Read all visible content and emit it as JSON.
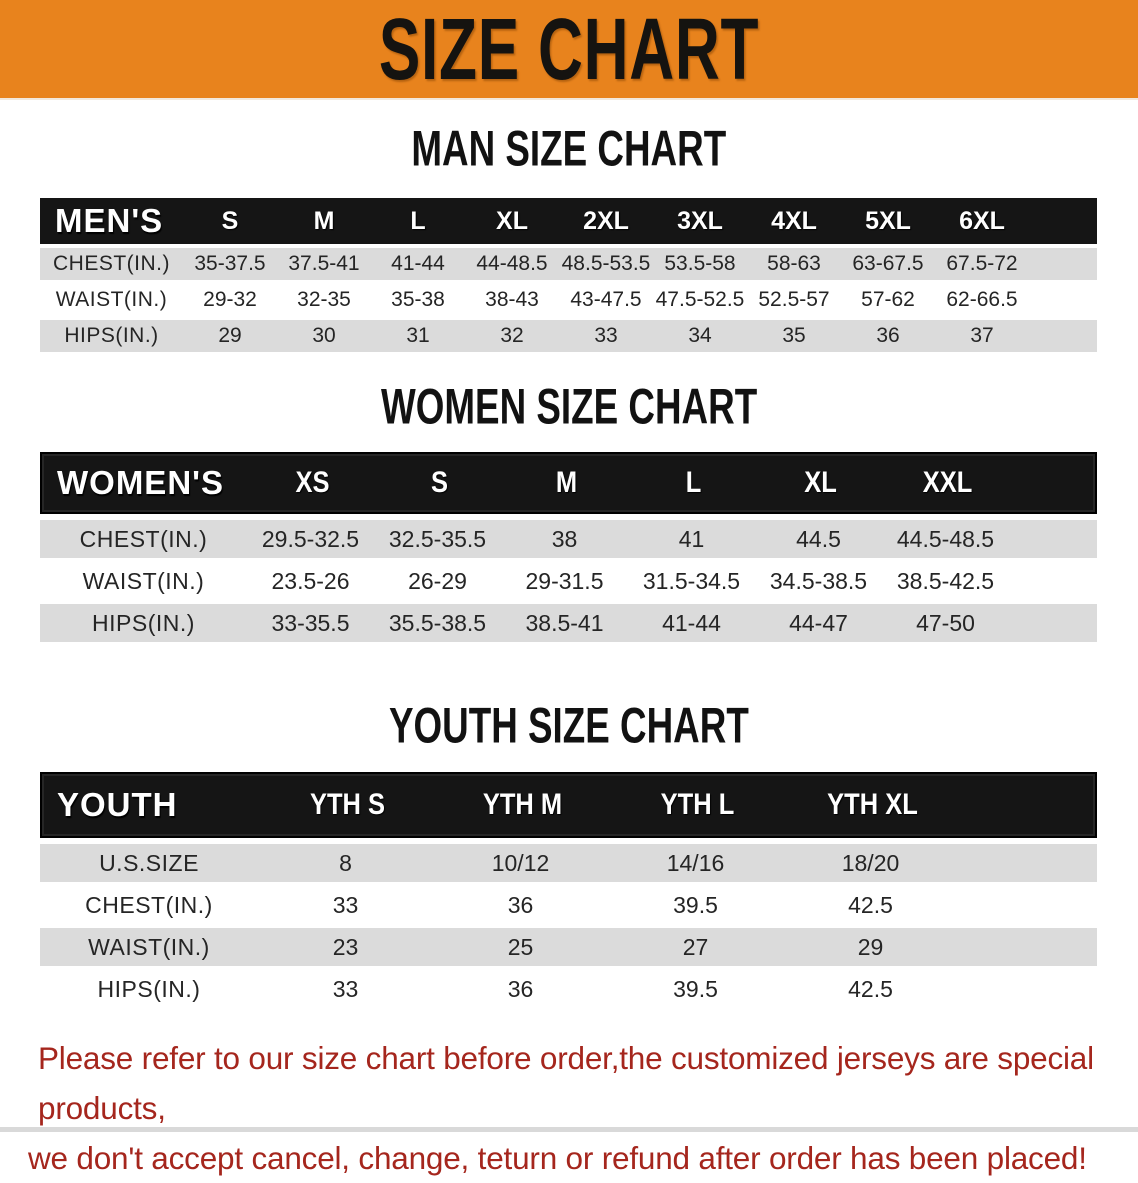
{
  "banner": {
    "title": "SIZE CHART"
  },
  "colors": {
    "banner_orange": "#E8831D",
    "header_black": "#151515",
    "stripe_gray": "#DBDBDB",
    "note_red": "#A5261D"
  },
  "sections": {
    "men": {
      "heading": "MAN SIZE CHART",
      "table": {
        "label": "MEN'S",
        "columns": [
          "S",
          "M",
          "L",
          "XL",
          "2XL",
          "3XL",
          "4XL",
          "5XL",
          "6XL"
        ],
        "rows": [
          {
            "label": "CHEST(IN.)",
            "values": [
              "35-37.5",
              "37.5-41",
              "41-44",
              "44-48.5",
              "48.5-53.5",
              "53.5-58",
              "58-63",
              "63-67.5",
              "67.5-72"
            ]
          },
          {
            "label": "WAIST(IN.)",
            "values": [
              "29-32",
              "32-35",
              "35-38",
              "38-43",
              "43-47.5",
              "47.5-52.5",
              "52.5-57",
              "57-62",
              "62-66.5"
            ]
          },
          {
            "label": "HIPS(IN.)",
            "values": [
              "29",
              "30",
              "31",
              "32",
              "33",
              "34",
              "35",
              "36",
              "37"
            ]
          }
        ]
      }
    },
    "women": {
      "heading": "WOMEN SIZE CHART",
      "table": {
        "label": "WOMEN'S",
        "columns": [
          "XS",
          "S",
          "M",
          "L",
          "XL",
          "XXL"
        ],
        "rows": [
          {
            "label": "CHEST(IN.)",
            "values": [
              "29.5-32.5",
              "32.5-35.5",
              "38",
              "41",
              "44.5",
              "44.5-48.5"
            ]
          },
          {
            "label": "WAIST(IN.)",
            "values": [
              "23.5-26",
              "26-29",
              "29-31.5",
              "31.5-34.5",
              "34.5-38.5",
              "38.5-42.5"
            ]
          },
          {
            "label": "HIPS(IN.)",
            "values": [
              "33-35.5",
              "35.5-38.5",
              "38.5-41",
              "41-44",
              "44-47",
              "47-50"
            ]
          }
        ]
      }
    },
    "youth": {
      "heading": "YOUTH SIZE CHART",
      "table": {
        "label": "YOUTH",
        "columns": [
          "YTH S",
          "YTH M",
          "YTH L",
          "YTH XL"
        ],
        "rows": [
          {
            "label": "U.S.SIZE",
            "values": [
              "8",
              "10/12",
              "14/16",
              "18/20"
            ]
          },
          {
            "label": "CHEST(IN.)",
            "values": [
              "33",
              "36",
              "39.5",
              "42.5"
            ]
          },
          {
            "label": "WAIST(IN.)",
            "values": [
              "23",
              "25",
              "27",
              "29"
            ]
          },
          {
            "label": "HIPS(IN.)",
            "values": [
              "33",
              "36",
              "39.5",
              "42.5"
            ]
          }
        ]
      }
    }
  },
  "note": {
    "line1": "Please refer to our size chart before order,the customized jerseys are special products,",
    "line2": "we don't accept cancel, change, teturn or refund after order has been placed!"
  }
}
